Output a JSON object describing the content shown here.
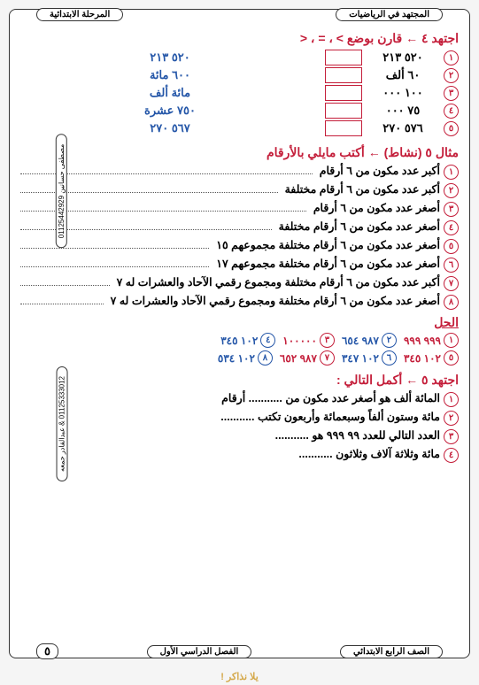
{
  "header": {
    "right_tab": "المجتهد في الرياضيات",
    "left_tab": "المرحلة الابتدائية"
  },
  "side_text": {
    "upper": "مصطفى حسانين 01125442929",
    "lower": "01125333012 & عبدالقادر جمعه"
  },
  "section1": {
    "title": "اجتهد ٤ ← قارن بوضع > ، = ، <",
    "rows": [
      {
        "n": "١",
        "right": "٥٢٠ ٢١٣",
        "left": "٥٢٠ ٢١٣"
      },
      {
        "n": "٢",
        "right": "٦٠ ألف",
        "left": "٦٠٠ مائة"
      },
      {
        "n": "٣",
        "right": "١٠٠ ٠٠٠",
        "left": "مائة ألف"
      },
      {
        "n": "٤",
        "right": "٧٥ ٠٠٠",
        "left": "٧٥٠ عشرة"
      },
      {
        "n": "٥",
        "right": "٥٧٦ ٢٧٠",
        "left": "٥٦٧ ٢٧٠"
      }
    ]
  },
  "section2": {
    "title": "مثال ٥ (نشاط) ← أكتب مايلي بالأرقام",
    "items": [
      {
        "n": "١",
        "text": "أكبر عدد مكون من ٦ أرقام"
      },
      {
        "n": "٢",
        "text": "أكبر عدد مكون من ٦ أرقام مختلفة"
      },
      {
        "n": "٣",
        "text": "أصغر عدد مكون من ٦ أرقام"
      },
      {
        "n": "٤",
        "text": "أصغر عدد مكون من ٦ أرقام مختلفة"
      },
      {
        "n": "٥",
        "text": "أصغر عدد مكون من ٦ أرقام مختلفة مجموعهم ١٥"
      },
      {
        "n": "٦",
        "text": "أصغر عدد مكون من ٦ أرقام مختلفة مجموعهم ١٧"
      },
      {
        "n": "٧",
        "text": "أكبر عدد مكون من ٦ أرقام مختلفة ومجموع رقمي الآحاد والعشرات له ٧"
      },
      {
        "n": "٨",
        "text": "أصغر عدد مكون من ٦ أرقام مختلفة ومجموع رقمي الآحاد والعشرات له ٧"
      }
    ]
  },
  "solution": {
    "title": "الحل",
    "row1": [
      {
        "n": "١",
        "v": "٩٩٩ ٩٩٩",
        "c": "red"
      },
      {
        "n": "٢",
        "v": "٩٨٧ ٦٥٤",
        "c": "blue"
      },
      {
        "n": "٣",
        "v": "١٠٠٠٠٠",
        "c": "red"
      },
      {
        "n": "٤",
        "v": "١٠٢ ٣٤٥",
        "c": "blue"
      }
    ],
    "row2": [
      {
        "n": "٥",
        "v": "١٠٢ ٣٤٥",
        "c": "red"
      },
      {
        "n": "٦",
        "v": "١٠٢ ٣٤٧",
        "c": "blue"
      },
      {
        "n": "٧",
        "v": "٩٨٧ ٦٥٢",
        "c": "red"
      },
      {
        "n": "٨",
        "v": "١٠٢ ٥٣٤",
        "c": "blue"
      }
    ]
  },
  "section3": {
    "title": "اجتهد ٥ ← أكمل التالي :",
    "items": [
      {
        "n": "١",
        "text": "المائة ألف هو أصغر عدد مكون من ........... أرقام"
      },
      {
        "n": "٢",
        "text": "مائة وستون ألفاً وسبعمائة وأربعون تكتب ..........."
      },
      {
        "n": "٣",
        "text": "العدد التالي للعدد ٩٩ ٩٩٩ هو ..........."
      },
      {
        "n": "٤",
        "text": "مائة وثلاثة آلاف وثلاثون ..........."
      }
    ]
  },
  "footer": {
    "right_tab": "الصف الرابع الابتدائي",
    "mid_tab": "الفصل الدراسي الأول",
    "page": "٥",
    "logo": "يلا نذاكر !"
  }
}
